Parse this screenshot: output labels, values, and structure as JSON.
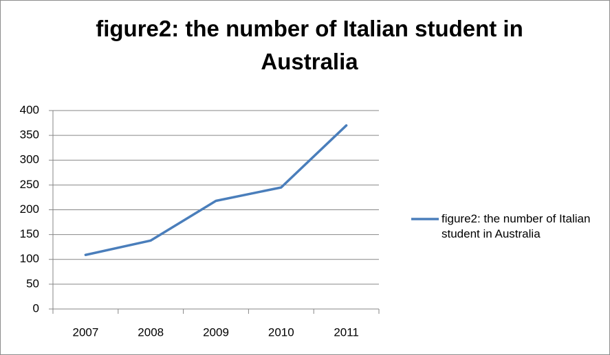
{
  "chart_data": {
    "type": "line",
    "title": "figure2: the number of Italian student in Australia",
    "categories": [
      "2007",
      "2008",
      "2009",
      "2010",
      "2011"
    ],
    "series": [
      {
        "name": "figure2: the number of Italian student in Australia",
        "color": "#4a7ebb",
        "values": [
          109,
          138,
          218,
          245,
          370
        ]
      }
    ],
    "ylim": [
      0,
      400
    ],
    "yticks": [
      0,
      50,
      100,
      150,
      200,
      250,
      300,
      350,
      400
    ],
    "grid": true,
    "legend": "right"
  }
}
